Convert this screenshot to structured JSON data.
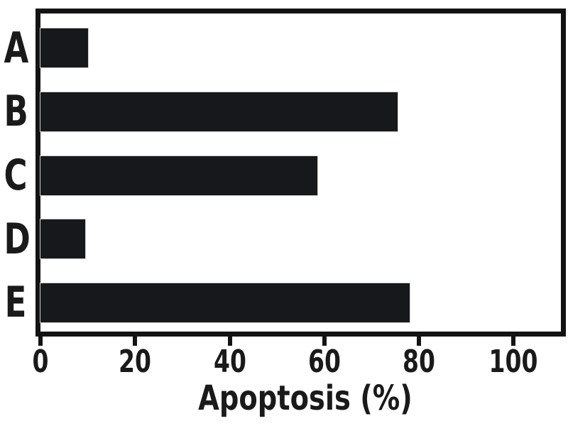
{
  "figure": {
    "background": "#ffffff"
  },
  "chart_data": {
    "type": "bar",
    "orientation": "horizontal",
    "categories": [
      "A",
      "B",
      "C",
      "D",
      "E"
    ],
    "values": [
      10,
      75.5,
      58.5,
      9.5,
      78
    ],
    "title": "",
    "xlabel": "Apoptosis (%)",
    "ylabel": "",
    "xlim": [
      0,
      110
    ],
    "x_ticks": [
      0,
      20,
      40,
      60,
      80,
      100
    ],
    "grid": false,
    "legend": false,
    "bar_color": "#17181c",
    "axis_color": "#131313",
    "text_color": "#1a1a1a"
  }
}
